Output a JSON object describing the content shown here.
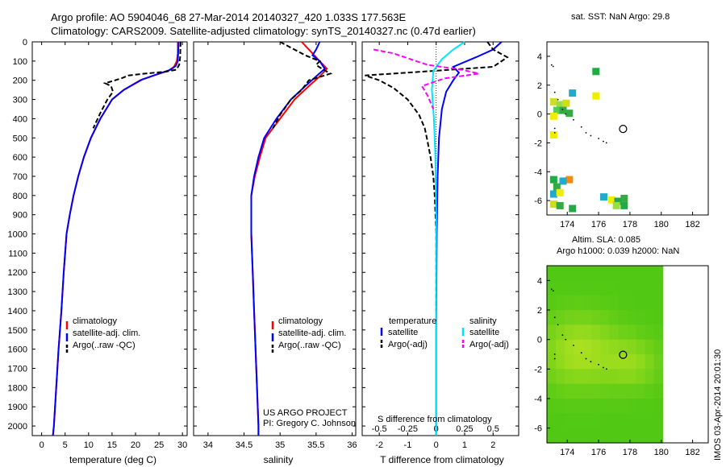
{
  "title": {
    "line1": "Argo profile: AO 5904046_68 27-Mar-2014 20140327_420 1.033S 177.563E",
    "line2": "Climatology: CARS2009. Satellite-adjusted climatology: synTS_20140327.nc (0.47d earlier)"
  },
  "side_stamp": "IMOS 03-Apr-2014 20:01:30",
  "chart_data": [
    {
      "id": "temperature",
      "type": "line",
      "xlabel": "temperature (deg C)",
      "ylabel": "",
      "xlim": [
        -2,
        31
      ],
      "ylim": [
        2050,
        0
      ],
      "xticks": [
        "0",
        "5",
        "10",
        "15",
        "20",
        "25",
        "30"
      ],
      "xtick_values": [
        0,
        5,
        10,
        15,
        20,
        25,
        30
      ],
      "yticks": [
        "0",
        "100",
        "200",
        "300",
        "400",
        "500",
        "600",
        "700",
        "800",
        "900",
        "1000",
        "1100",
        "1200",
        "1300",
        "1400",
        "1500",
        "1600",
        "1700",
        "1800",
        "1900",
        "2000"
      ],
      "ytick_values": [
        0,
        100,
        200,
        300,
        400,
        500,
        600,
        700,
        800,
        900,
        1000,
        1100,
        1200,
        1300,
        1400,
        1500,
        1600,
        1700,
        1800,
        1900,
        2000
      ],
      "legend": [
        "climatology",
        "satellite-adj. clim.",
        "Argo(..raw -QC)"
      ],
      "series": [
        {
          "name": "climatology",
          "color": "#ff0000",
          "dash": "",
          "points": [
            [
              29.0,
              0
            ],
            [
              29.0,
              60
            ],
            [
              28.8,
              100
            ],
            [
              28.2,
              130
            ],
            [
              27.0,
              150
            ],
            [
              24.5,
              170
            ],
            [
              21.0,
              200
            ],
            [
              17.5,
              250
            ],
            [
              15.0,
              300
            ],
            [
              12.5,
              400
            ],
            [
              10.5,
              500
            ],
            [
              9.0,
              600
            ],
            [
              7.8,
              700
            ],
            [
              6.8,
              800
            ],
            [
              6.0,
              900
            ],
            [
              5.3,
              1000
            ],
            [
              4.7,
              1200
            ],
            [
              4.2,
              1400
            ],
            [
              3.6,
              1600
            ],
            [
              3.1,
              1800
            ],
            [
              2.6,
              2000
            ],
            [
              2.4,
              2050
            ]
          ]
        },
        {
          "name": "satellite-adj. clim.",
          "color": "#0000ff",
          "dash": "",
          "points": [
            [
              29.2,
              0
            ],
            [
              29.1,
              60
            ],
            [
              29.0,
              100
            ],
            [
              28.6,
              125
            ],
            [
              27.5,
              145
            ],
            [
              25.0,
              165
            ],
            [
              21.5,
              195
            ],
            [
              17.5,
              250
            ],
            [
              15.0,
              300
            ],
            [
              12.5,
              400
            ],
            [
              10.5,
              500
            ],
            [
              9.0,
              600
            ],
            [
              7.8,
              700
            ],
            [
              6.8,
              800
            ],
            [
              6.0,
              900
            ],
            [
              5.3,
              1000
            ],
            [
              4.7,
              1200
            ],
            [
              4.2,
              1400
            ],
            [
              3.6,
              1600
            ],
            [
              3.1,
              1800
            ],
            [
              2.6,
              2000
            ],
            [
              2.4,
              2050
            ]
          ]
        },
        {
          "name": "Argo(..raw -QC)",
          "color": "#000000",
          "dash": "6,3",
          "points": [
            [
              29.6,
              0
            ],
            [
              29.5,
              80
            ],
            [
              29.3,
              120
            ],
            [
              28.7,
              145
            ],
            [
              26.5,
              155
            ],
            [
              22.0,
              165
            ],
            [
              18.5,
              175
            ],
            [
              17.0,
              190
            ],
            [
              15.0,
              205
            ],
            [
              13.5,
              215
            ],
            [
              14.8,
              230
            ],
            [
              15.2,
              260
            ],
            [
              14.0,
              300
            ],
            [
              12.5,
              370
            ],
            [
              11.0,
              450
            ]
          ]
        }
      ]
    },
    {
      "id": "salinity",
      "type": "line",
      "xlabel": "salinity",
      "xlim": [
        33.8,
        36.05
      ],
      "ylim": [
        2050,
        0
      ],
      "xticks": [
        "34",
        "34.5",
        "35",
        "35.5",
        "36"
      ],
      "xtick_values": [
        34,
        34.5,
        35,
        35.5,
        36
      ],
      "legend": [
        "climatology",
        "satellite-adj. clim.",
        "Argo(..raw -QC)"
      ],
      "series": [
        {
          "name": "climatology",
          "color": "#ff0000",
          "dash": "",
          "points": [
            [
              35.3,
              0
            ],
            [
              35.45,
              60
            ],
            [
              35.55,
              100
            ],
            [
              35.65,
              140
            ],
            [
              35.55,
              180
            ],
            [
              35.4,
              230
            ],
            [
              35.2,
              300
            ],
            [
              35.0,
              400
            ],
            [
              34.8,
              500
            ],
            [
              34.72,
              600
            ],
            [
              34.65,
              700
            ],
            [
              34.6,
              800
            ],
            [
              34.6,
              1000
            ],
            [
              34.62,
              1200
            ],
            [
              34.64,
              1400
            ],
            [
              34.66,
              1600
            ],
            [
              34.68,
              1800
            ],
            [
              34.7,
              2000
            ],
            [
              34.7,
              2050
            ]
          ]
        },
        {
          "name": "satellite-adj. clim.",
          "color": "#0000ff",
          "dash": "",
          "points": [
            [
              35.55,
              0
            ],
            [
              35.5,
              40
            ],
            [
              35.45,
              70
            ],
            [
              35.55,
              100
            ],
            [
              35.62,
              140
            ],
            [
              35.5,
              180
            ],
            [
              35.35,
              230
            ],
            [
              35.15,
              300
            ],
            [
              34.95,
              400
            ],
            [
              34.78,
              500
            ],
            [
              34.7,
              600
            ],
            [
              34.64,
              700
            ],
            [
              34.6,
              800
            ],
            [
              34.6,
              1000
            ],
            [
              34.62,
              1200
            ],
            [
              34.64,
              1400
            ],
            [
              34.66,
              1600
            ],
            [
              34.68,
              1800
            ],
            [
              34.7,
              2000
            ],
            [
              34.7,
              2050
            ]
          ]
        },
        {
          "name": "Argo(..raw -QC)",
          "color": "#000000",
          "dash": "6,3",
          "points": [
            [
              35.0,
              0
            ],
            [
              35.15,
              30
            ],
            [
              35.35,
              70
            ],
            [
              35.55,
              100
            ],
            [
              35.5,
              120
            ],
            [
              35.6,
              145
            ],
            [
              35.7,
              165
            ],
            [
              35.4,
              200
            ],
            [
              35.3,
              250
            ],
            [
              35.15,
              300
            ],
            [
              35.0,
              380
            ],
            [
              34.9,
              450
            ]
          ]
        }
      ]
    },
    {
      "id": "difference",
      "type": "line",
      "xlabel": "T difference from climatology",
      "top_label": "S difference from climatology",
      "xlim": [
        -2.6,
        2.9
      ],
      "ylim": [
        2050,
        0
      ],
      "xticks": [
        "-2",
        "-1",
        "0",
        "1",
        "2"
      ],
      "xtick_values": [
        -2,
        -1,
        0,
        1,
        2
      ],
      "top_ticks": [
        "-0.5",
        "-0.25",
        "0",
        "0.25",
        "0.5"
      ],
      "top_tick_values": [
        -2,
        -1,
        0,
        1,
        2
      ],
      "legend_group_a": "temperature",
      "legend_group_b": "salinity",
      "legend": [
        "satellite",
        "Argo(-adj)",
        "satellite",
        "Argo(-adj)"
      ],
      "series": [
        {
          "name": "temperature satellite",
          "color": "#0000ff",
          "dash": "",
          "points": [
            [
              2.3,
              0
            ],
            [
              2.0,
              40
            ],
            [
              1.4,
              80
            ],
            [
              0.6,
              130
            ],
            [
              0.8,
              160
            ],
            [
              0.6,
              200
            ],
            [
              0.35,
              260
            ],
            [
              0.2,
              350
            ],
            [
              0.1,
              500
            ],
            [
              0.05,
              700
            ],
            [
              0.02,
              1000
            ],
            [
              0.0,
              1500
            ],
            [
              0.0,
              2050
            ]
          ]
        },
        {
          "name": "temperature Argo(-adj)",
          "color": "#000000",
          "dash": "6,3",
          "points": [
            [
              1.8,
              0
            ],
            [
              2.0,
              40
            ],
            [
              2.5,
              80
            ],
            [
              2.0,
              130
            ],
            [
              -1.0,
              160
            ],
            [
              -2.5,
              175
            ],
            [
              -2.0,
              200
            ],
            [
              -1.5,
              240
            ],
            [
              -1.0,
              300
            ],
            [
              -0.6,
              380
            ],
            [
              -0.4,
              450
            ],
            [
              -0.3,
              520
            ],
            [
              -0.2,
              600
            ],
            [
              -0.1,
              700
            ],
            [
              -0.05,
              800
            ],
            [
              0.0,
              1000
            ],
            [
              0.0,
              1400
            ]
          ]
        },
        {
          "name": "salinity satellite",
          "color": "#00e5ff",
          "dash": "",
          "points": [
            [
              1.0,
              0
            ],
            [
              0.6,
              40
            ],
            [
              0.2,
              90
            ],
            [
              -0.1,
              150
            ],
            [
              -0.15,
              250
            ],
            [
              -0.08,
              400
            ],
            [
              -0.03,
              600
            ],
            [
              0.0,
              900
            ],
            [
              0.0,
              2050
            ]
          ]
        },
        {
          "name": "salinity Argo(-adj)",
          "color": "#ff00ff",
          "dash": "6,3",
          "points": [
            [
              -2.2,
              40
            ],
            [
              -1.5,
              60
            ],
            [
              -0.7,
              100
            ],
            [
              -0.3,
              120
            ],
            [
              0.9,
              145
            ],
            [
              1.5,
              165
            ],
            [
              0.3,
              190
            ],
            [
              -0.5,
              230
            ],
            [
              -0.3,
              280
            ],
            [
              -0.1,
              350
            ]
          ]
        }
      ]
    },
    {
      "id": "sst_map",
      "type": "heatmap",
      "title": "sat. SST: NaN Argo: 29.8",
      "xlim": [
        172.7,
        183.0
      ],
      "ylim": [
        -7,
        5
      ],
      "xticks": [
        "174",
        "176",
        "178",
        "180",
        "182"
      ],
      "xtick_values": [
        174,
        176,
        178,
        180,
        182
      ],
      "yticks": [
        "4",
        "2",
        "0",
        "-2",
        "-4",
        "-6"
      ],
      "ytick_values": [
        4,
        2,
        0,
        -2,
        -4,
        -6
      ],
      "float_position": [
        177.563,
        -1.033
      ]
    },
    {
      "id": "sla_map",
      "type": "heatmap",
      "title_line1": "Altim. SLA: 0.085",
      "title_line2": "Argo h1000: 0.039 h2000: NaN",
      "xlim": [
        172.7,
        183.0
      ],
      "ylim": [
        -7,
        5
      ],
      "xticks": [
        "174",
        "176",
        "178",
        "180",
        "182"
      ],
      "xtick_values": [
        174,
        176,
        178,
        180,
        182
      ],
      "yticks": [
        "4",
        "2",
        "0",
        "-2",
        "-4",
        "-6"
      ],
      "ytick_values": [
        4,
        2,
        0,
        -2,
        -4,
        -6
      ],
      "float_position": [
        177.563,
        -1.033
      ]
    }
  ],
  "annotations": {
    "project": "US ARGO PROJECT",
    "pi": "PI: Gregory C. Johnson"
  }
}
